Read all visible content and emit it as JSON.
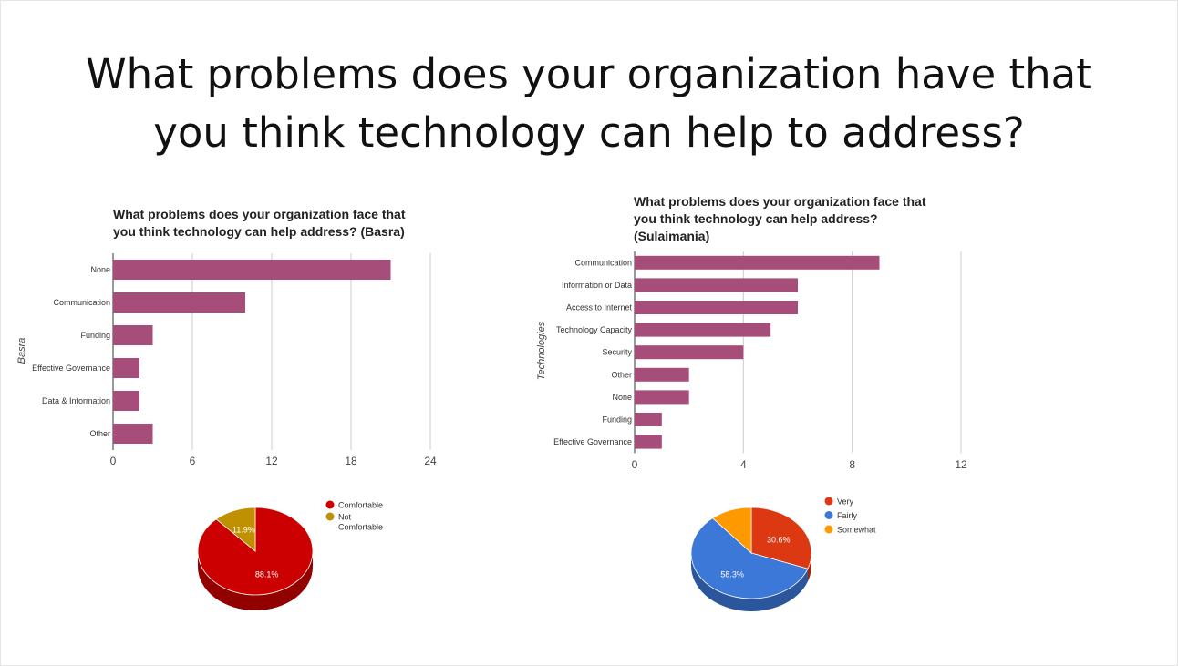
{
  "slide": {
    "title_line1": "What problems does your organization have that",
    "title_line2": "you think technology can help to address?"
  },
  "chart_data": [
    {
      "type": "bar",
      "orientation": "horizontal",
      "title_lines": [
        "What problems does your organization face that",
        "you think technology can help address? (Basra)"
      ],
      "ylabel": "Basra",
      "xlabel": "",
      "categories": [
        "None",
        "Communication",
        "Funding",
        "Effective Governance",
        "Data & Information",
        "Other"
      ],
      "values": [
        21,
        10,
        3,
        2,
        2,
        3
      ],
      "xlim": [
        0,
        24
      ],
      "xticks": [
        0,
        6,
        12,
        18,
        24
      ],
      "grid": true,
      "color": "#a64d79"
    },
    {
      "type": "bar",
      "orientation": "horizontal",
      "title_lines": [
        "What problems does your organization face that",
        "you think technology can help address?",
        "(Sulaimania)"
      ],
      "ylabel": "Technologies",
      "xlabel": "",
      "categories": [
        "Communication",
        "Information or Data",
        "Access to Internet",
        "Technology Capacity",
        "Security",
        "Other",
        "None",
        "Funding",
        "Effective Governance"
      ],
      "values": [
        9,
        6,
        6,
        5,
        4,
        2,
        2,
        1,
        1
      ],
      "xlim": [
        0,
        12
      ],
      "xticks": [
        0,
        4,
        8,
        12
      ],
      "grid": true,
      "color": "#a64d79"
    },
    {
      "type": "pie",
      "style": "3d",
      "legend_position": "right",
      "slices": [
        {
          "label": "Comfortable",
          "value": 88.1,
          "display": "88.1%",
          "color": "#cc0000"
        },
        {
          "label": "Not Comfortable",
          "value": 11.9,
          "display": "11.9%",
          "color": "#bf9000"
        }
      ]
    },
    {
      "type": "pie",
      "style": "3d",
      "legend_position": "right",
      "slices": [
        {
          "label": "Very",
          "value": 30.6,
          "display": "30.6%",
          "color": "#dc3912"
        },
        {
          "label": "Fairly",
          "value": 58.3,
          "display": "58.3%",
          "color": "#3c78d8"
        },
        {
          "label": "Somewhat",
          "value": 11.1,
          "display": "",
          "color": "#ff9900"
        }
      ]
    }
  ]
}
